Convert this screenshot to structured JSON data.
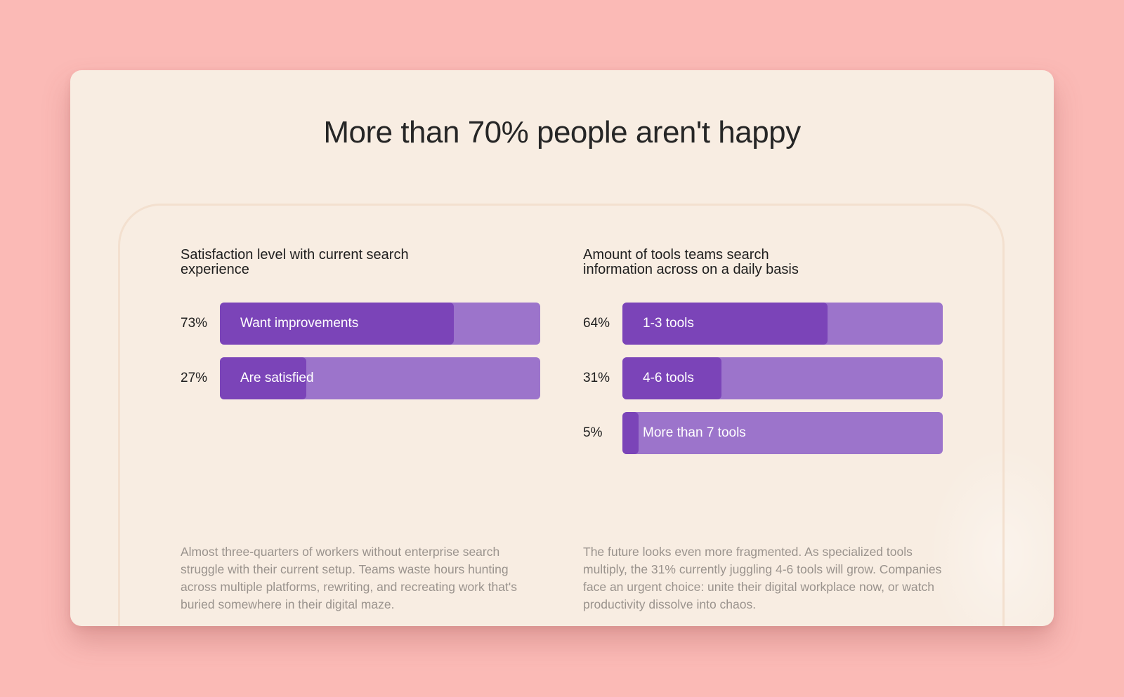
{
  "page": {
    "title": "More than 70% people aren't happy"
  },
  "colors": {
    "background": "#fbbab6",
    "card": "#f8ede2",
    "bar_track": "#9c74cb",
    "bar_fill": "#7b44b8",
    "text_dark": "#1e1e1e",
    "text_muted": "#9a938d"
  },
  "chart_data": [
    {
      "type": "bar",
      "orientation": "horizontal",
      "title": "Satisfaction level with current search experience",
      "categories": [
        "Want improvements",
        "Are satisfied"
      ],
      "values": [
        73,
        27
      ],
      "value_labels": [
        "73%",
        "27%"
      ],
      "unit": "%",
      "xlim": [
        0,
        100
      ],
      "description": "Almost three-quarters of workers without enterprise search struggle with their current setup. Teams waste hours hunting across multiple platforms, rewriting, and recreating work that's buried somewhere in their digital maze."
    },
    {
      "type": "bar",
      "orientation": "horizontal",
      "title": "Amount of tools teams search information across on a daily basis",
      "categories": [
        "1-3 tools",
        "4-6 tools",
        "More than 7 tools"
      ],
      "values": [
        64,
        31,
        5
      ],
      "value_labels": [
        "64%",
        "31%",
        "5%"
      ],
      "unit": "%",
      "xlim": [
        0,
        100
      ],
      "description": "The future looks even more fragmented. As specialized tools multiply, the 31% currently juggling 4-6 tools will grow. Companies face an urgent choice: unite their digital workplace now, or watch productivity dissolve into chaos."
    }
  ]
}
